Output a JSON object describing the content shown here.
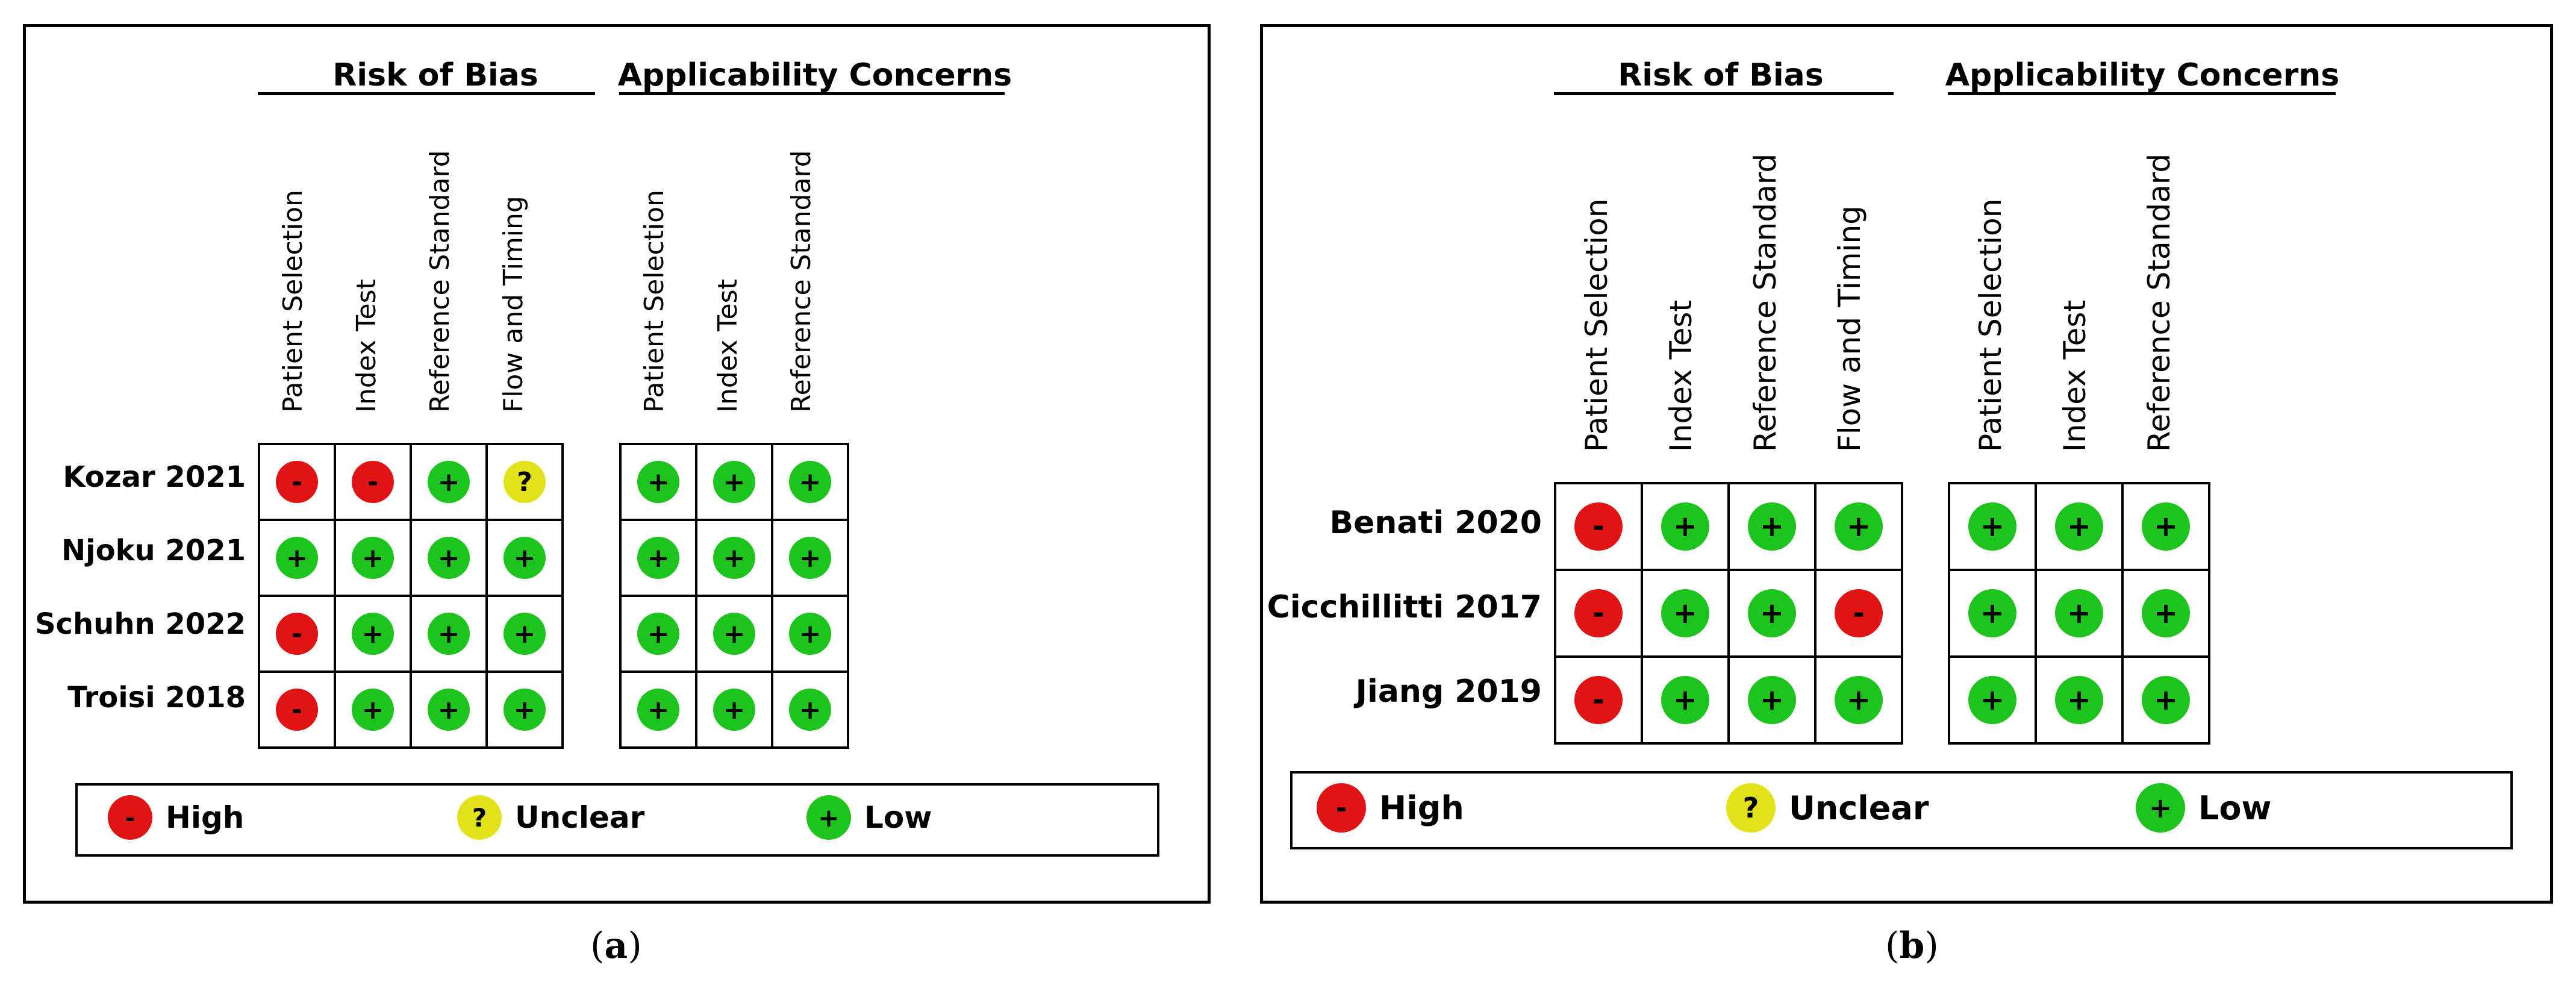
{
  "panels": [
    {
      "caption_letter": "a",
      "groups": {
        "bias": "Risk of Bias",
        "applicability": "Applicability Concerns"
      },
      "bias_domains": [
        "Patient Selection",
        "Index Test",
        "Reference Standard",
        "Flow and Timing"
      ],
      "applicability_domains": [
        "Patient Selection",
        "Index Test",
        "Reference Standard"
      ],
      "studies": [
        {
          "name": "Kozar 2021",
          "bias": [
            "high",
            "high",
            "low",
            "unclear"
          ],
          "applicability": [
            "low",
            "low",
            "low"
          ]
        },
        {
          "name": "Njoku 2021",
          "bias": [
            "low",
            "low",
            "low",
            "low"
          ],
          "applicability": [
            "low",
            "low",
            "low"
          ]
        },
        {
          "name": "Schuhn 2022",
          "bias": [
            "high",
            "low",
            "low",
            "low"
          ],
          "applicability": [
            "low",
            "low",
            "low"
          ]
        },
        {
          "name": "Troisi 2018",
          "bias": [
            "high",
            "low",
            "low",
            "low"
          ],
          "applicability": [
            "low",
            "low",
            "low"
          ]
        }
      ],
      "legend": [
        {
          "level": "high",
          "symbol": "-",
          "label": "High",
          "color": "#e01414"
        },
        {
          "level": "unclear",
          "symbol": "?",
          "label": "Unclear",
          "color": "#e2e21a"
        },
        {
          "level": "low",
          "symbol": "+",
          "label": "Low",
          "color": "#1ec41e"
        }
      ]
    },
    {
      "caption_letter": "b",
      "groups": {
        "bias": "Risk of Bias",
        "applicability": "Applicability Concerns"
      },
      "bias_domains": [
        "Patient Selection",
        "Index Test",
        "Reference Standard",
        "Flow and Timing"
      ],
      "applicability_domains": [
        "Patient Selection",
        "Index Test",
        "Reference Standard"
      ],
      "studies": [
        {
          "name": "Benati 2020",
          "bias": [
            "high",
            "low",
            "low",
            "low"
          ],
          "applicability": [
            "low",
            "low",
            "low"
          ]
        },
        {
          "name": "Cicchillitti 2017",
          "bias": [
            "high",
            "low",
            "low",
            "high"
          ],
          "applicability": [
            "low",
            "low",
            "low"
          ]
        },
        {
          "name": "Jiang 2019",
          "bias": [
            "high",
            "low",
            "low",
            "low"
          ],
          "applicability": [
            "low",
            "low",
            "low"
          ]
        }
      ],
      "legend": [
        {
          "level": "high",
          "symbol": "-",
          "label": "High",
          "color": "#e01414"
        },
        {
          "level": "unclear",
          "symbol": "?",
          "label": "Unclear",
          "color": "#e2e21a"
        },
        {
          "level": "low",
          "symbol": "+",
          "label": "Low",
          "color": "#1ec41e"
        }
      ]
    }
  ]
}
